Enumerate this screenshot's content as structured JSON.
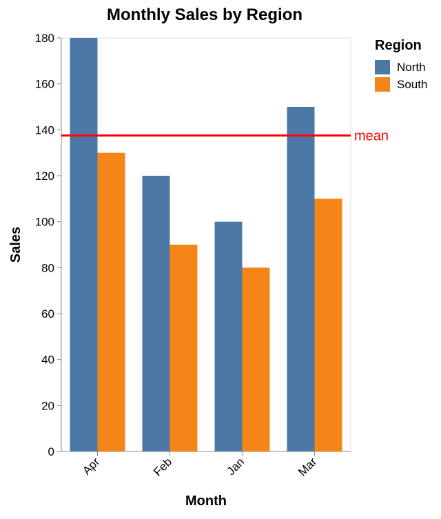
{
  "chart_data": {
    "type": "bar",
    "title": "Monthly Sales by Region",
    "xlabel": "Month",
    "ylabel": "Sales",
    "categories": [
      "Apr",
      "Feb",
      "Jan",
      "Mar"
    ],
    "series": [
      {
        "name": "North",
        "color": "#4c78a8",
        "values": [
          180,
          120,
          100,
          150
        ]
      },
      {
        "name": "South",
        "color": "#f58518",
        "values": [
          130,
          90,
          80,
          110
        ]
      }
    ],
    "ylim": [
      0,
      180
    ],
    "yticks": [
      0,
      20,
      40,
      60,
      80,
      100,
      120,
      140,
      160,
      180
    ],
    "grid": false,
    "legend": {
      "title": "Region",
      "position": "top-right"
    },
    "reference_line": {
      "label": "mean",
      "value": 137.5,
      "color": "#ff0000"
    }
  }
}
